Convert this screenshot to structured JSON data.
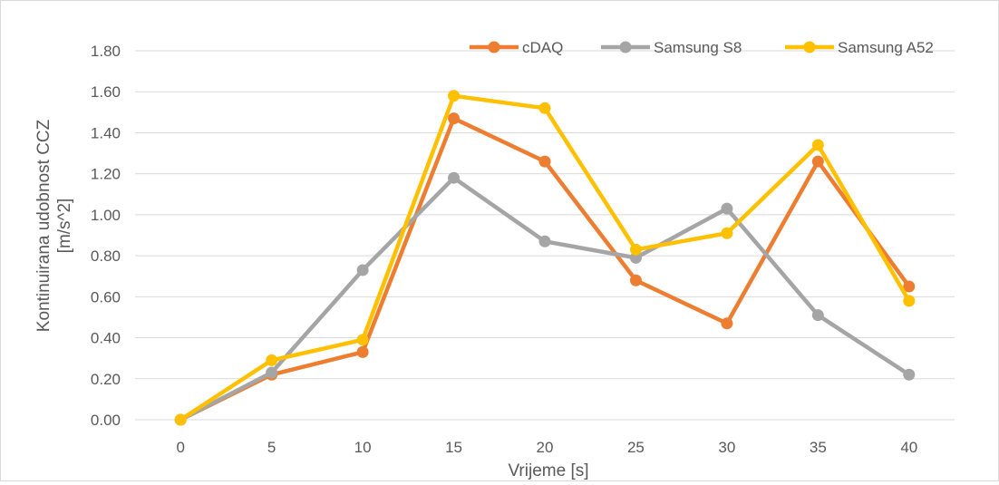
{
  "chart_data": {
    "type": "line",
    "xlabel": "Vrijeme  [s]",
    "ylabel_line1": "Kontinuirana udobnost CCZ",
    "ylabel_line2": "[m/s^2]",
    "x": [
      "0",
      "5",
      "10",
      "15",
      "20",
      "25",
      "30",
      "35",
      "40"
    ],
    "y_ticks": [
      "0.00",
      "0.20",
      "0.40",
      "0.60",
      "0.80",
      "1.00",
      "1.20",
      "1.40",
      "1.60",
      "1.80"
    ],
    "ylim": [
      0,
      1.8
    ],
    "grid": "horizontal",
    "legend_position": "top-right",
    "series": [
      {
        "name": "cDAQ",
        "color": "#ED7D31",
        "values": [
          0.0,
          0.22,
          0.33,
          1.47,
          1.26,
          0.68,
          0.47,
          1.26,
          0.65
        ]
      },
      {
        "name": "Samsung S8",
        "color": "#A5A5A5",
        "values": [
          0.0,
          0.23,
          0.73,
          1.18,
          0.87,
          0.79,
          1.03,
          0.51,
          0.22
        ]
      },
      {
        "name": "Samsung A52",
        "color": "#FFC000",
        "values": [
          0.0,
          0.29,
          0.39,
          1.58,
          1.52,
          0.83,
          0.91,
          1.34,
          0.58
        ]
      }
    ]
  }
}
